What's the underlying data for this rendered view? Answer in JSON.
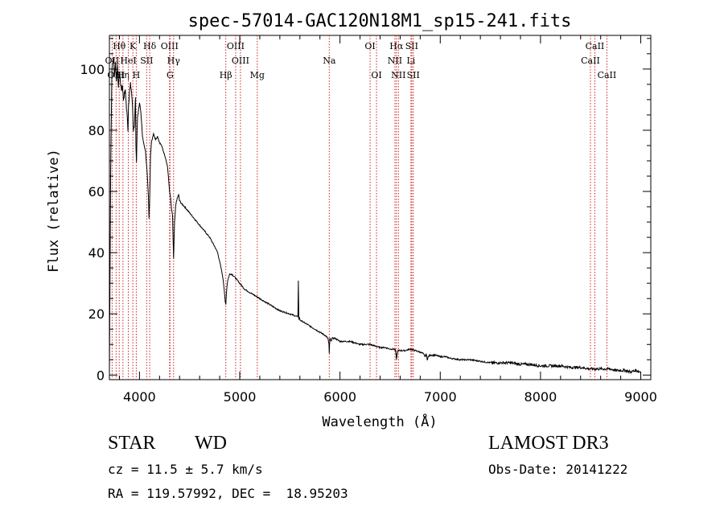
{
  "chart_data": {
    "type": "line",
    "title": "spec-57014-GAC120N18M1_sp15-241.fits",
    "xlabel": "Wavelength (Å)",
    "ylabel": "Flux (relative)",
    "xlim": [
      3700,
      9100
    ],
    "ylim": [
      -1.5,
      111
    ],
    "xticks": [
      4000,
      5000,
      6000,
      7000,
      8000,
      9000
    ],
    "yticks": [
      0,
      20,
      40,
      60,
      80,
      100
    ],
    "series": [
      {
        "name": "flux",
        "x": [
          3700,
          3712,
          3725,
          3740,
          3750,
          3760,
          3770,
          3780,
          3790,
          3800,
          3810,
          3820,
          3830,
          3840,
          3850,
          3860,
          3870,
          3880,
          3885,
          3890,
          3900,
          3910,
          3920,
          3930,
          3940,
          3950,
          3960,
          3965,
          3970,
          3975,
          3980,
          3990,
          4000,
          4010,
          4020,
          4030,
          4040,
          4060,
          4075,
          4090,
          4095,
          4100,
          4105,
          4110,
          4120,
          4140,
          4160,
          4180,
          4200,
          4220,
          4240,
          4260,
          4280,
          4300,
          4310,
          4320,
          4330,
          4335,
          4340,
          4345,
          4350,
          4355,
          4360,
          4370,
          4380,
          4390,
          4400,
          4420,
          4450,
          4500,
          4550,
          4600,
          4650,
          4700,
          4750,
          4780,
          4800,
          4820,
          4835,
          4845,
          4855,
          4861,
          4866,
          4872,
          4880,
          4890,
          4900,
          4920,
          4950,
          5000,
          5050,
          5100,
          5150,
          5200,
          5300,
          5400,
          5500,
          5580,
          5585,
          5590,
          5595,
          5600,
          5650,
          5700,
          5750,
          5800,
          5850,
          5880,
          5890,
          5893,
          5896,
          5900,
          5910,
          5920,
          5950,
          6000,
          6050,
          6100,
          6150,
          6200,
          6250,
          6300,
          6350,
          6400,
          6450,
          6500,
          6540,
          6555,
          6563,
          6570,
          6580,
          6600,
          6650,
          6700,
          6750,
          6800,
          6830,
          6850,
          6860,
          6870,
          6880,
          6900,
          6950,
          7000,
          7050,
          7100,
          7200,
          7300,
          7400,
          7500,
          7600,
          7700,
          7800,
          7900,
          8000,
          8100,
          8200,
          8300,
          8400,
          8500,
          8600,
          8650,
          8700,
          8750,
          8800,
          8850,
          8900,
          8950,
          9000
        ],
        "y": [
          0,
          65,
          100,
          104,
          98,
          102,
          96,
          101,
          94,
          99,
          96,
          93,
          95,
          90,
          92,
          93,
          87,
          84,
          80,
          88,
          92,
          95,
          93,
          88,
          80,
          82,
          90,
          74,
          69,
          78,
          84,
          87,
          89,
          87,
          83,
          78,
          76,
          73,
          67,
          58,
          51,
          56,
          63,
          72,
          76,
          79,
          77,
          78,
          76,
          75,
          73,
          71,
          68,
          60,
          58,
          54,
          52,
          45,
          38,
          44,
          50,
          52,
          55,
          57,
          58,
          59,
          57,
          56,
          55,
          53,
          51,
          49,
          47,
          45,
          42,
          40,
          37,
          34,
          31,
          28,
          24,
          23,
          26,
          29,
          31,
          32,
          33,
          33,
          32,
          30,
          28,
          27,
          26,
          25,
          23,
          21,
          20,
          19,
          31,
          18,
          19,
          18,
          17,
          16,
          15,
          14,
          13,
          12,
          10,
          7,
          10,
          12,
          11,
          12,
          12,
          11,
          11,
          11,
          10.5,
          10,
          10,
          10,
          9.5,
          9,
          9,
          8.5,
          8.5,
          8,
          5,
          7,
          8,
          8,
          8,
          8.5,
          8,
          7.5,
          7,
          6,
          7,
          5,
          6,
          6.5,
          6.5,
          6,
          6,
          5.5,
          5,
          5,
          4.5,
          4,
          4,
          4,
          3.5,
          3.5,
          3,
          3,
          3,
          2.5,
          2.5,
          2,
          2,
          2,
          2,
          1.5,
          1.5,
          1.5,
          1,
          1.5,
          1
        ]
      }
    ],
    "lines": [
      {
        "label": "Hθ",
        "x": 3798,
        "row": 1
      },
      {
        "label": "OII",
        "x": 3727,
        "row": 2
      },
      {
        "label": "OIII",
        "x": 3767,
        "row": 3
      },
      {
        "label": "Hη",
        "x": 3835,
        "row": 3
      },
      {
        "label": "HeI",
        "x": 3889,
        "row": 2
      },
      {
        "label": "K",
        "x": 3934,
        "row": 1
      },
      {
        "label": "H",
        "x": 3968,
        "row": 3
      },
      {
        "label": "SII",
        "x": 4072,
        "row": 2
      },
      {
        "label": "Hδ",
        "x": 4102,
        "row": 1
      },
      {
        "label": "OIII",
        "x": 4300,
        "row": 1
      },
      {
        "label": "Hγ",
        "x": 4340,
        "row": 2
      },
      {
        "label": "G",
        "x": 4305,
        "row": 3
      },
      {
        "label": "Hβ",
        "x": 4861,
        "row": 3
      },
      {
        "label": "OIII",
        "x": 4959,
        "row": 1
      },
      {
        "label": "OIII",
        "x": 5007,
        "row": 2
      },
      {
        "label": "Mg",
        "x": 5175,
        "row": 3
      },
      {
        "label": "Na",
        "x": 5893,
        "row": 2
      },
      {
        "label": "OI",
        "x": 6300,
        "row": 1
      },
      {
        "label": "OI",
        "x": 6364,
        "row": 3
      },
      {
        "label": "Hα",
        "x": 6563,
        "row": 1
      },
      {
        "label": "NII",
        "x": 6548,
        "row": 2
      },
      {
        "label": "NII",
        "x": 6583,
        "row": 3
      },
      {
        "label": "SII",
        "x": 6716,
        "row": 1
      },
      {
        "label": "Li",
        "x": 6708,
        "row": 2
      },
      {
        "label": "SII",
        "x": 6731,
        "row": 3
      },
      {
        "label": "CaII",
        "x": 8542,
        "row": 1
      },
      {
        "label": "CaII",
        "x": 8498,
        "row": 2
      },
      {
        "label": "CaII",
        "x": 8662,
        "row": 3
      }
    ]
  },
  "info": {
    "class_label": "STAR",
    "subclass_label": "WD",
    "survey": "LAMOST DR3",
    "cz": "cz = 11.5 ± 5.7 km/s",
    "obs_date": "Obs-Date: 20141222",
    "coords": "RA = 119.57992, DEC =  18.95203"
  },
  "colors": {
    "line_marker": "#cc2222",
    "spectrum": "#000000"
  }
}
